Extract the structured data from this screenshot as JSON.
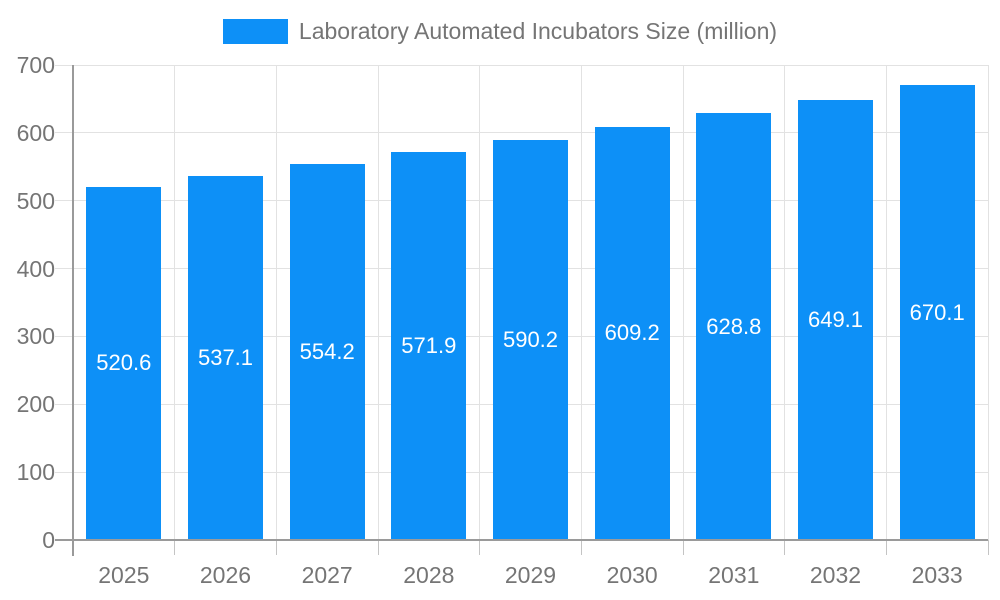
{
  "legend": {
    "label": "Laboratory Automated Incubators Size (million)"
  },
  "chart_data": {
    "type": "bar",
    "title": "Laboratory Automated Incubators Size (million)",
    "categories": [
      "2025",
      "2026",
      "2027",
      "2028",
      "2029",
      "2030",
      "2031",
      "2032",
      "2033"
    ],
    "values": [
      520.6,
      537.1,
      554.2,
      571.9,
      590.2,
      609.2,
      628.8,
      649.1,
      670.1
    ],
    "value_labels": [
      "520.6",
      "537.1",
      "554.2",
      "571.9",
      "590.2",
      "609.2",
      "628.8",
      "649.1",
      "670.1"
    ],
    "xlabel": "",
    "ylabel": "",
    "ylim": [
      0,
      700
    ],
    "yticks": [
      0,
      100,
      200,
      300,
      400,
      500,
      600,
      700
    ],
    "grid": true,
    "legend_position": "top",
    "bar_color": "#0d90f7",
    "bar_label_color": "#ffffff",
    "axis_text_color": "#757575",
    "gridline_color": "#e2e2e2",
    "axis_line_color": "#9a9a9a",
    "background_color": "#ffffff"
  }
}
